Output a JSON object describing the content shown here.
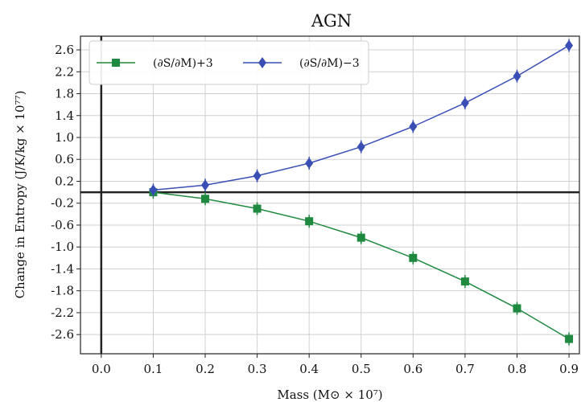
{
  "chart_data": {
    "type": "line",
    "title": "AGN",
    "xlabel": "Mass (M⊙ × 10⁷)",
    "ylabel": "Change in Entropy (J/K/kg × 10⁷⁷)",
    "x": [
      0.1,
      0.2,
      0.3,
      0.4,
      0.5,
      0.6,
      0.7,
      0.8,
      0.9
    ],
    "xlim": [
      -0.04,
      0.92
    ],
    "ylim": [
      -2.95,
      2.85
    ],
    "xticks": [
      "0.0",
      "0.1",
      "0.2",
      "0.3",
      "0.4",
      "0.5",
      "0.6",
      "0.7",
      "0.8",
      "0.9"
    ],
    "yticks": [
      "2.6",
      "2.2",
      "1.8",
      "1.4",
      "1.0",
      "0.6",
      "0.2",
      "-0.2",
      "-0.6",
      "-1.0",
      "-1.4",
      "-1.8",
      "-2.2",
      "-2.6"
    ],
    "grid": true,
    "legend_position": "top-left",
    "series": [
      {
        "name": "(∂S/∂M)+3",
        "color": "#1f8a3f",
        "marker": "square",
        "values": [
          0.0,
          -0.12,
          -0.3,
          -0.53,
          -0.83,
          -1.2,
          -1.63,
          -2.12,
          -2.68
        ]
      },
      {
        "name": "(∂S/∂M)−3",
        "color": "#3a4fb5",
        "marker": "diamond",
        "values": [
          0.04,
          0.13,
          0.3,
          0.53,
          0.83,
          1.2,
          1.63,
          2.12,
          2.68
        ]
      }
    ]
  }
}
